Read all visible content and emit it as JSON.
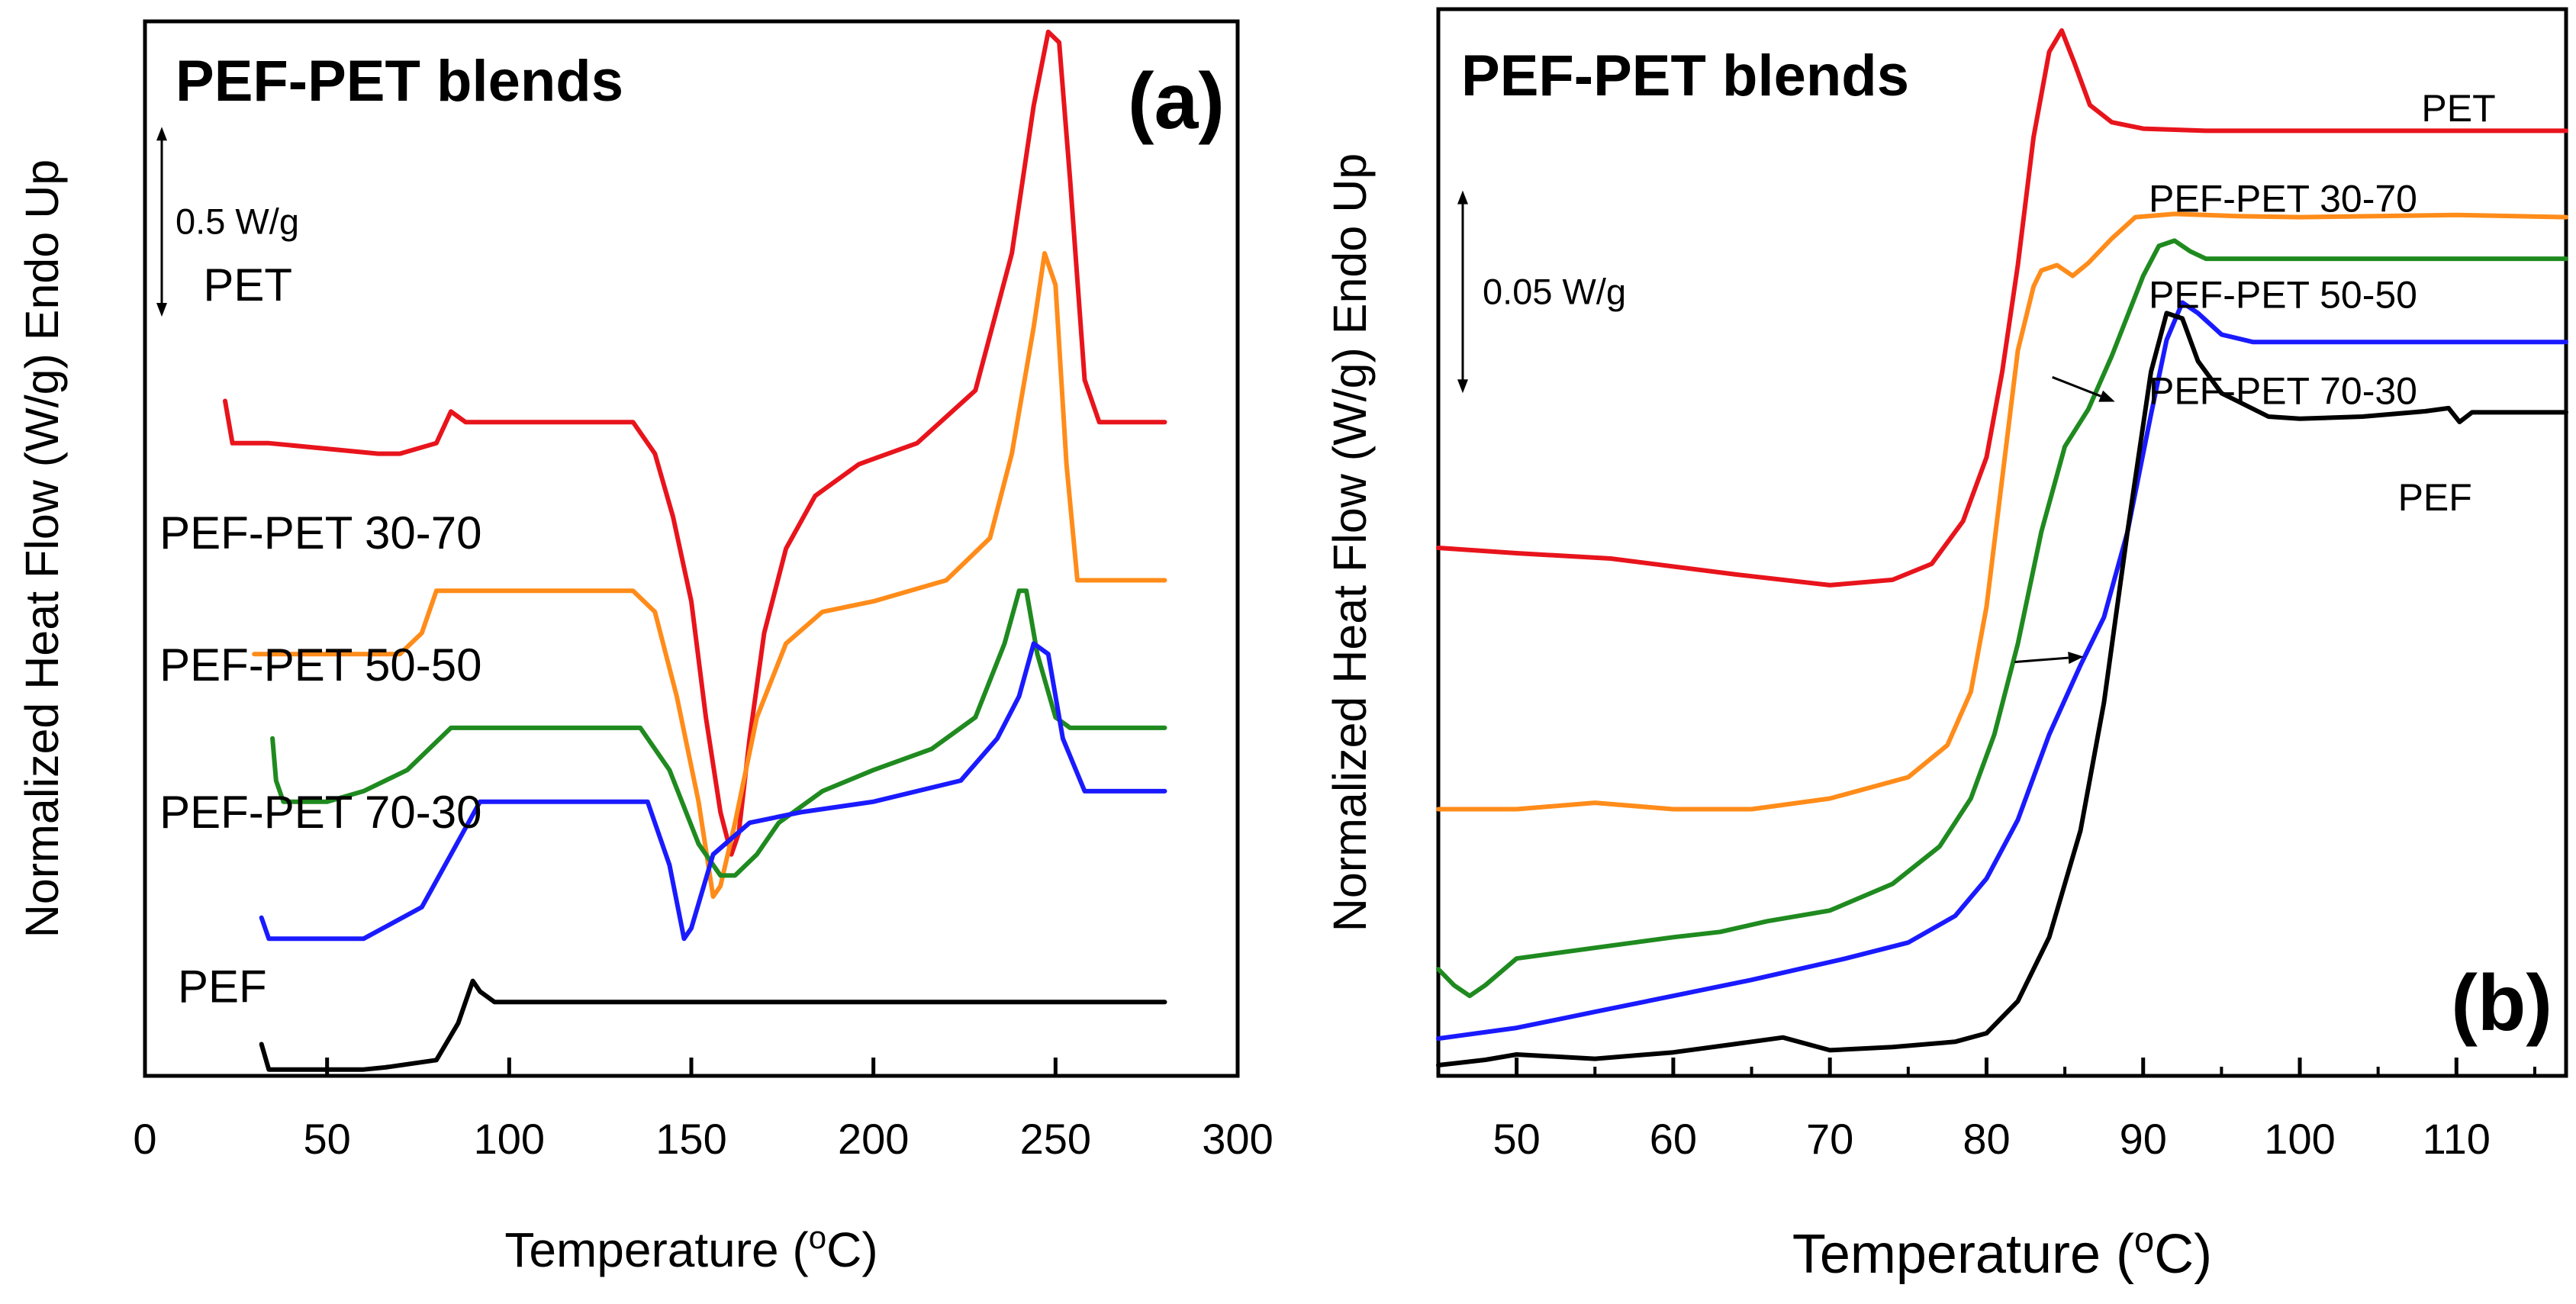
{
  "chart_data": [
    {
      "type": "line",
      "panel": "(a)",
      "title": "PEF-PET blends",
      "xlabel": "Temperature (°C)",
      "ylabel": "Normalized Heat Flow (W/g) Endo Up",
      "xlim": [
        0,
        300
      ],
      "ylim": [
        0,
        100
      ],
      "xticks": [
        0,
        50,
        100,
        150,
        200,
        250,
        300
      ],
      "scale_bar_label": "0.5 W/g",
      "scale_bar_range": [
        72,
        90
      ],
      "series": [
        {
          "name": "PET",
          "label": "PET",
          "color": "#e8141c",
          "label_pos": [
            16,
            73.5
          ],
          "x": [
            22,
            24,
            34,
            64,
            70,
            80,
            84,
            88,
            134,
            140,
            145,
            150,
            154,
            158,
            161,
            163,
            166,
            170,
            176,
            184,
            196,
            212,
            228,
            238,
            244,
            248,
            251,
            254,
            258,
            262,
            280
          ],
          "y": [
            64,
            60,
            60,
            59,
            59,
            60,
            63,
            62,
            62,
            59,
            53,
            45,
            34,
            25,
            21,
            23,
            32,
            42,
            50,
            55,
            58,
            60,
            65,
            78,
            92,
            99,
            98,
            85,
            66,
            62,
            62
          ]
        },
        {
          "name": "PEF-PET 30-70",
          "label": "PEF-PET 30-70",
          "color": "#ff8c1a",
          "label_pos": [
            4,
            50
          ],
          "x": [
            30,
            70,
            76,
            80,
            84,
            134,
            140,
            146,
            152,
            156,
            158,
            162,
            168,
            176,
            186,
            200,
            220,
            232,
            238,
            244,
            247,
            250,
            253,
            256,
            268,
            280
          ],
          "y": [
            40,
            40,
            42,
            46,
            46,
            46,
            44,
            36,
            26,
            17,
            18,
            24,
            34,
            41,
            44,
            45,
            47,
            51,
            59,
            71,
            78,
            75,
            58,
            47,
            47,
            47
          ]
        },
        {
          "name": "PEF-PET 50-50",
          "label": "PEF-PET 50-50",
          "color": "#1f8a1f",
          "label_pos": [
            4,
            37.5
          ],
          "x": [
            35,
            36,
            38,
            42,
            50,
            60,
            72,
            84,
            90,
            92,
            136,
            144,
            152,
            158,
            162,
            168,
            174,
            186,
            200,
            216,
            228,
            236,
            240,
            242,
            245,
            250,
            254,
            262,
            280
          ],
          "y": [
            32,
            28,
            26,
            26,
            26,
            27,
            29,
            33,
            33,
            33,
            33,
            29,
            22,
            19,
            19,
            21,
            24,
            27,
            29,
            31,
            34,
            41,
            46,
            46,
            40,
            34,
            33,
            33,
            33
          ]
        },
        {
          "name": "PEF-PET 70-30",
          "label": "PEF-PET 70-30",
          "color": "#1a1aff",
          "label_pos": [
            4,
            23.5
          ],
          "x": [
            32,
            34,
            40,
            60,
            76,
            84,
            92,
            94,
            138,
            144,
            148,
            150,
            156,
            166,
            180,
            200,
            224,
            234,
            240,
            244,
            248,
            252,
            258,
            268,
            280
          ],
          "y": [
            15,
            13,
            13,
            13,
            16,
            21,
            26,
            26,
            26,
            20,
            13,
            14,
            21,
            24,
            25,
            26,
            28,
            32,
            36,
            41,
            40,
            32,
            27,
            27,
            27
          ]
        },
        {
          "name": "PEF",
          "label": "PEF",
          "color": "#000000",
          "label_pos": [
            9,
            7
          ],
          "x": [
            32,
            34,
            40,
            60,
            66,
            80,
            86,
            90,
            92,
            96,
            280
          ],
          "y": [
            3,
            0.6,
            0.6,
            0.6,
            0.8,
            1.5,
            5,
            9,
            8,
            7,
            7
          ]
        }
      ]
    },
    {
      "type": "line",
      "panel": "(b)",
      "title": "PEF-PET blends",
      "xlabel": "Temperature (°C)",
      "ylabel": "Normalized Heat Flow (W/g) Endo Up",
      "xlim": [
        45,
        117
      ],
      "ylim": [
        0,
        100
      ],
      "xticks": [
        50,
        60,
        70,
        80,
        90,
        100,
        110
      ],
      "scale_bar_label": "0.05 W/g",
      "scale_bar_range": [
        64,
        83
      ],
      "arrow_annotations": [
        {
          "from": [
            81.8,
            38.8
          ],
          "to": [
            86.2,
            39.3
          ]
        },
        {
          "from": [
            84.2,
            65.5
          ],
          "to": [
            88.2,
            63.2
          ]
        }
      ],
      "series": [
        {
          "name": "PET",
          "label": "PET",
          "color": "#e8141c",
          "label_pos": [
            112.5,
            89.5
          ],
          "x": [
            45,
            50,
            56,
            64,
            70,
            74,
            76.5,
            78.5,
            80,
            81,
            82,
            83,
            84,
            84.8,
            85.6,
            86.6,
            88,
            90,
            94,
            100,
            106,
            112,
            117
          ],
          "y": [
            49.5,
            49,
            48.5,
            47,
            46,
            46.5,
            48,
            52,
            58,
            66,
            76,
            88,
            96,
            98,
            95,
            91,
            89.4,
            88.8,
            88.6,
            88.6,
            88.6,
            88.6,
            88.6
          ]
        },
        {
          "name": "PEF-PET 30-70",
          "label": "PEF-PET 30-70",
          "color": "#ff8c1a",
          "label_pos": [
            107.5,
            81
          ],
          "x": [
            45,
            50,
            55,
            60,
            65,
            70,
            75,
            77.5,
            79,
            80,
            81,
            82,
            83,
            83.5,
            84.5,
            85.5,
            86.5,
            88,
            89.5,
            92,
            96,
            100,
            110,
            117
          ],
          "y": [
            25,
            25,
            25.6,
            25,
            25,
            26,
            28,
            31,
            36,
            44,
            56,
            68,
            74,
            75.5,
            76,
            75,
            76.2,
            78.5,
            80.5,
            80.8,
            80.6,
            80.5,
            80.7,
            80.5
          ]
        },
        {
          "name": "PEF-PET 50-50",
          "label": "PEF-PET 50-50",
          "color": "#1f8a1f",
          "label_pos": [
            107.5,
            72
          ],
          "x": [
            45,
            46,
            47,
            48,
            50,
            55,
            60,
            63,
            66,
            70,
            74,
            77,
            79,
            80.5,
            82,
            83.5,
            85,
            86.5,
            88,
            90,
            91,
            92,
            93,
            94,
            96,
            100,
            117
          ],
          "y": [
            10,
            8.5,
            7.5,
            8.5,
            11,
            12,
            13,
            13.5,
            14.5,
            15.5,
            18,
            21.5,
            26,
            32,
            40.5,
            51,
            59,
            62.5,
            67.5,
            75,
            77.8,
            78.3,
            77.3,
            76.6,
            76.6,
            76.6,
            76.6
          ]
        },
        {
          "name": "PEF-PET 70-30",
          "label": "PEF-PET 70-30",
          "color": "#1a1aff",
          "label_pos": [
            107.5,
            63
          ],
          "x": [
            45,
            50,
            55,
            60,
            65,
            68,
            71,
            75,
            78,
            80,
            82,
            84,
            86,
            87.5,
            89,
            90.5,
            91.5,
            92.5,
            93.5,
            95,
            97,
            100,
            117
          ],
          "y": [
            3.5,
            4.5,
            6,
            7.5,
            9,
            10,
            11,
            12.5,
            15,
            18.5,
            24,
            32,
            38.5,
            43,
            51,
            62,
            69,
            72.5,
            71.5,
            69.5,
            68.8,
            68.8,
            68.8
          ]
        },
        {
          "name": "PEF",
          "label": "PEF",
          "color": "#000000",
          "label_pos": [
            111,
            53
          ],
          "x": [
            45,
            48,
            50,
            55,
            60,
            64,
            67,
            70,
            74,
            78,
            80,
            82,
            84,
            86,
            87.5,
            89,
            90.5,
            91.5,
            92.5,
            93.5,
            95,
            98,
            100,
            104,
            108,
            109.5,
            110.2,
            111,
            112,
            117
          ],
          "y": [
            1,
            1.5,
            2,
            1.6,
            2.2,
            3,
            3.6,
            2.4,
            2.7,
            3.2,
            4,
            7,
            13,
            23,
            35,
            51,
            66,
            71.5,
            71,
            67,
            64,
            61.8,
            61.6,
            61.8,
            62.3,
            62.6,
            61.3,
            62.2,
            62.2,
            62.2
          ]
        }
      ]
    }
  ]
}
